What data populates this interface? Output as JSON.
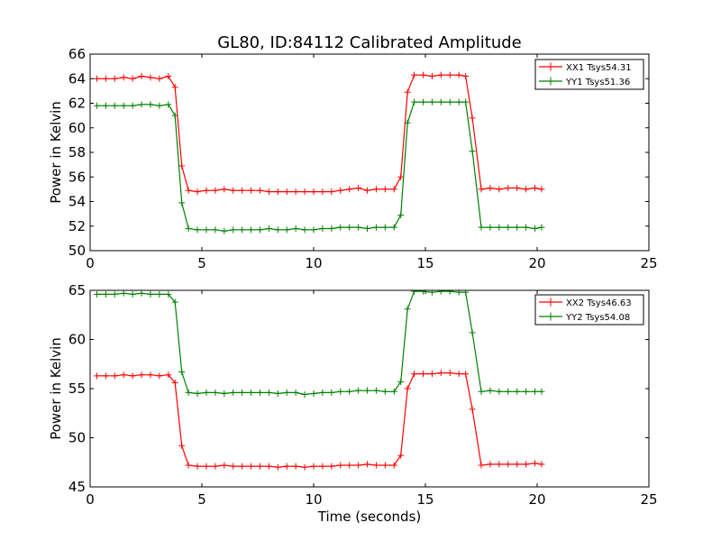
{
  "chart_data": {
    "type": "line",
    "title": "GL80, ID:84112 Calibrated Amplitude",
    "xlabel": "Time (seconds)",
    "grid": false,
    "legend_location": "top-right",
    "marker": "plus",
    "panels": [
      {
        "ylabel": "Power in Kelvin",
        "xlabel": "",
        "xlim": [
          0,
          25
        ],
        "ylim": [
          50,
          66
        ],
        "xticks": [
          0,
          5,
          10,
          15,
          20,
          25
        ],
        "yticks": [
          50,
          52,
          54,
          56,
          58,
          60,
          62,
          64,
          66
        ],
        "series": [
          {
            "name": "XX1 Tsys54.31",
            "color": "#ff0000",
            "x": [
              0.3,
              0.7,
              1.1,
              1.5,
              1.9,
              2.3,
              2.7,
              3.1,
              3.5,
              3.8,
              4.1,
              4.4,
              4.8,
              5.2,
              5.6,
              6.0,
              6.4,
              6.8,
              7.2,
              7.6,
              8.0,
              8.4,
              8.8,
              9.2,
              9.6,
              10.0,
              10.4,
              10.8,
              11.2,
              11.6,
              12.0,
              12.4,
              12.8,
              13.2,
              13.6,
              13.9,
              14.2,
              14.5,
              14.9,
              15.3,
              15.7,
              16.1,
              16.5,
              16.8,
              17.1,
              17.5,
              17.9,
              18.3,
              18.7,
              19.1,
              19.5,
              19.9,
              20.2
            ],
            "y": [
              64.0,
              64.0,
              64.0,
              64.1,
              64.0,
              64.2,
              64.1,
              64.0,
              64.2,
              63.3,
              56.9,
              54.9,
              54.8,
              54.9,
              54.9,
              55.0,
              54.9,
              54.9,
              54.9,
              54.9,
              54.8,
              54.8,
              54.8,
              54.8,
              54.8,
              54.8,
              54.8,
              54.8,
              54.9,
              55.0,
              55.1,
              54.9,
              55.0,
              55.0,
              55.0,
              56.0,
              62.9,
              64.3,
              64.3,
              64.2,
              64.3,
              64.3,
              64.3,
              64.2,
              60.8,
              55.0,
              55.1,
              55.0,
              55.1,
              55.1,
              55.0,
              55.1,
              55.0
            ]
          },
          {
            "name": "YY1 Tsys51.36",
            "color": "#008000",
            "x": [
              0.3,
              0.7,
              1.1,
              1.5,
              1.9,
              2.3,
              2.7,
              3.1,
              3.5,
              3.8,
              4.1,
              4.4,
              4.8,
              5.2,
              5.6,
              6.0,
              6.4,
              6.8,
              7.2,
              7.6,
              8.0,
              8.4,
              8.8,
              9.2,
              9.6,
              10.0,
              10.4,
              10.8,
              11.2,
              11.6,
              12.0,
              12.4,
              12.8,
              13.2,
              13.6,
              13.9,
              14.2,
              14.5,
              14.9,
              15.3,
              15.7,
              16.1,
              16.5,
              16.8,
              17.1,
              17.5,
              17.9,
              18.3,
              18.7,
              19.1,
              19.5,
              19.9,
              20.2
            ],
            "y": [
              61.8,
              61.8,
              61.8,
              61.8,
              61.8,
              61.9,
              61.9,
              61.8,
              61.9,
              61.0,
              53.9,
              51.8,
              51.7,
              51.7,
              51.7,
              51.6,
              51.7,
              51.7,
              51.7,
              51.7,
              51.8,
              51.7,
              51.7,
              51.8,
              51.7,
              51.7,
              51.8,
              51.8,
              51.9,
              51.9,
              51.9,
              51.8,
              51.9,
              51.9,
              51.9,
              52.9,
              60.4,
              62.1,
              62.1,
              62.1,
              62.1,
              62.1,
              62.1,
              62.1,
              58.1,
              51.9,
              51.9,
              51.9,
              51.9,
              51.9,
              51.9,
              51.8,
              51.9
            ]
          }
        ]
      },
      {
        "ylabel": "Power in Kelvin",
        "xlabel": "Time (seconds)",
        "xlim": [
          0,
          25
        ],
        "ylim": [
          45,
          65
        ],
        "xticks": [
          0,
          5,
          10,
          15,
          20,
          25
        ],
        "yticks": [
          45,
          50,
          55,
          60,
          65
        ],
        "series": [
          {
            "name": "XX2 Tsys46.63",
            "color": "#ff0000",
            "x": [
              0.3,
              0.7,
              1.1,
              1.5,
              1.9,
              2.3,
              2.7,
              3.1,
              3.5,
              3.8,
              4.1,
              4.4,
              4.8,
              5.2,
              5.6,
              6.0,
              6.4,
              6.8,
              7.2,
              7.6,
              8.0,
              8.4,
              8.8,
              9.2,
              9.6,
              10.0,
              10.4,
              10.8,
              11.2,
              11.6,
              12.0,
              12.4,
              12.8,
              13.2,
              13.6,
              13.9,
              14.2,
              14.5,
              14.9,
              15.3,
              15.7,
              16.1,
              16.5,
              16.8,
              17.1,
              17.5,
              17.9,
              18.3,
              18.7,
              19.1,
              19.5,
              19.9,
              20.2
            ],
            "y": [
              56.3,
              56.3,
              56.3,
              56.4,
              56.3,
              56.4,
              56.4,
              56.3,
              56.4,
              55.6,
              49.2,
              47.2,
              47.1,
              47.1,
              47.1,
              47.2,
              47.1,
              47.1,
              47.1,
              47.1,
              47.1,
              47.0,
              47.1,
              47.1,
              47.0,
              47.1,
              47.1,
              47.1,
              47.2,
              47.2,
              47.2,
              47.3,
              47.2,
              47.2,
              47.2,
              48.2,
              55.0,
              56.5,
              56.5,
              56.5,
              56.6,
              56.6,
              56.5,
              56.5,
              52.9,
              47.2,
              47.3,
              47.3,
              47.3,
              47.3,
              47.3,
              47.4,
              47.3
            ]
          },
          {
            "name": "YY2 Tsys54.08",
            "color": "#008000",
            "x": [
              0.3,
              0.7,
              1.1,
              1.5,
              1.9,
              2.3,
              2.7,
              3.1,
              3.5,
              3.8,
              4.1,
              4.4,
              4.8,
              5.2,
              5.6,
              6.0,
              6.4,
              6.8,
              7.2,
              7.6,
              8.0,
              8.4,
              8.8,
              9.2,
              9.6,
              10.0,
              10.4,
              10.8,
              11.2,
              11.6,
              12.0,
              12.4,
              12.8,
              13.2,
              13.6,
              13.9,
              14.2,
              14.5,
              14.9,
              15.3,
              15.7,
              16.1,
              16.5,
              16.8,
              17.1,
              17.5,
              17.9,
              18.3,
              18.7,
              19.1,
              19.5,
              19.9,
              20.2
            ],
            "y": [
              64.6,
              64.6,
              64.6,
              64.7,
              64.6,
              64.7,
              64.6,
              64.6,
              64.6,
              63.8,
              56.7,
              54.6,
              54.5,
              54.6,
              54.6,
              54.5,
              54.6,
              54.6,
              54.6,
              54.6,
              54.6,
              54.5,
              54.6,
              54.6,
              54.4,
              54.5,
              54.6,
              54.6,
              54.7,
              54.7,
              54.8,
              54.8,
              54.8,
              54.7,
              54.7,
              55.7,
              63.1,
              64.9,
              64.9,
              64.8,
              64.9,
              64.9,
              64.8,
              64.8,
              60.7,
              54.7,
              54.8,
              54.7,
              54.7,
              54.7,
              54.7,
              54.7,
              54.7
            ]
          }
        ]
      }
    ]
  }
}
